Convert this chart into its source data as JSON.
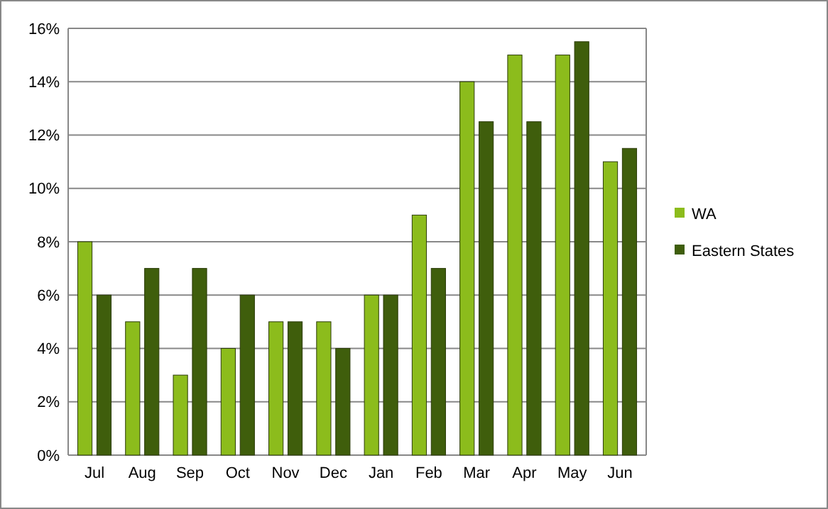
{
  "chart_data": {
    "type": "bar",
    "categories": [
      "Jul",
      "Aug",
      "Sep",
      "Oct",
      "Nov",
      "Dec",
      "Jan",
      "Feb",
      "Mar",
      "Apr",
      "May",
      "Jun"
    ],
    "series": [
      {
        "name": "WA",
        "color": "#8cbc1c",
        "values": [
          8,
          5,
          3,
          4,
          5,
          5,
          6,
          9,
          14,
          15,
          15,
          11
        ]
      },
      {
        "name": "Eastern States",
        "color": "#3f5e0c",
        "values": [
          6,
          7,
          7,
          6,
          5,
          4,
          6,
          7,
          12.5,
          12.5,
          15.5,
          11.5
        ]
      }
    ],
    "ylim": [
      0,
      16
    ],
    "yticks": [
      {
        "value": 0,
        "label": "0%"
      },
      {
        "value": 2,
        "label": "2%"
      },
      {
        "value": 4,
        "label": "4%"
      },
      {
        "value": 6,
        "label": "6%"
      },
      {
        "value": 8,
        "label": "8%"
      },
      {
        "value": 10,
        "label": "10%"
      },
      {
        "value": 12,
        "label": "12%"
      },
      {
        "value": 14,
        "label": "14%"
      },
      {
        "value": 16,
        "label": "16%"
      }
    ],
    "grid": "y",
    "legend": "right"
  }
}
